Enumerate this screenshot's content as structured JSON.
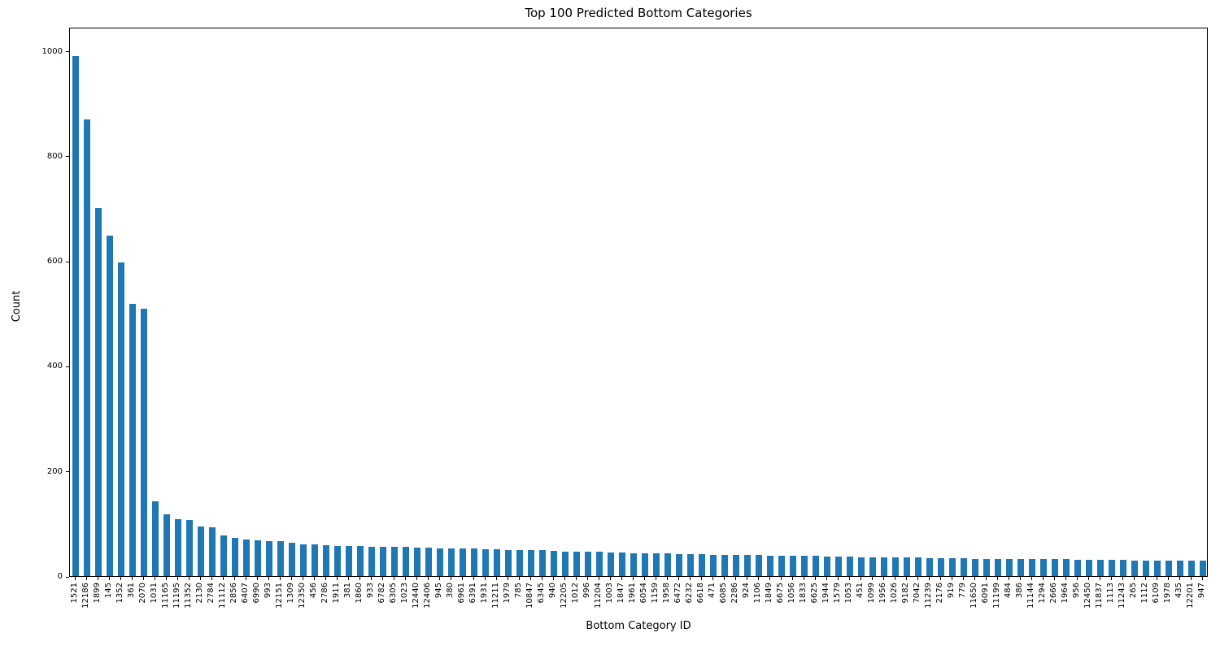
{
  "figure": {
    "background": "#ffffff",
    "text_color": "#000000",
    "spine_color": "#000000"
  },
  "chart_data": {
    "type": "bar",
    "title": "Top 100 Predicted Bottom Categories",
    "xlabel": "Bottom Category ID",
    "ylabel": "Count",
    "bar_color": "#1f77b4",
    "grid": false,
    "legend": "none",
    "x_tick_rotation": 90,
    "ylim": [
      0,
      1046
    ],
    "yticks": [
      0,
      200,
      400,
      600,
      800,
      1000
    ],
    "categories": [
      "1521",
      "12186",
      "1899",
      "145",
      "1352",
      "361",
      "2070",
      "1031",
      "11165",
      "11195",
      "11352",
      "2130",
      "2784",
      "11112",
      "2856",
      "6407",
      "6990",
      "993",
      "12151",
      "1309",
      "12350",
      "456",
      "2786",
      "1911",
      "381",
      "1860",
      "933",
      "6782",
      "6305",
      "1023",
      "12440",
      "12406",
      "945",
      "380",
      "6961",
      "6391",
      "1931",
      "11211",
      "1979",
      "785",
      "10847",
      "6345",
      "940",
      "12205",
      "1012",
      "996",
      "11204",
      "1003",
      "1847",
      "1961",
      "6054",
      "1159",
      "1958",
      "6472",
      "6232",
      "6618",
      "471",
      "6085",
      "2286",
      "924",
      "1106",
      "1849",
      "6675",
      "1056",
      "1833",
      "6625",
      "1944",
      "1579",
      "1053",
      "451",
      "1099",
      "1956",
      "1026",
      "9182",
      "7042",
      "11239",
      "2176",
      "919",
      "779",
      "11650",
      "6091",
      "11199",
      "484",
      "386",
      "11144",
      "1294",
      "2666",
      "1964",
      "956",
      "12450",
      "11837",
      "1113",
      "11243",
      "265",
      "1112",
      "6109",
      "1978",
      "435",
      "12201",
      "947"
    ],
    "values": [
      991,
      870,
      701,
      649,
      597,
      519,
      509,
      142,
      117,
      109,
      106,
      94,
      93,
      77,
      72,
      70,
      68,
      67,
      67,
      63,
      61,
      60,
      59,
      58,
      57,
      57,
      56,
      56,
      55,
      55,
      54,
      54,
      53,
      53,
      52,
      52,
      51,
      51,
      50,
      50,
      49,
      49,
      48,
      47,
      47,
      46,
      46,
      45,
      45,
      44,
      44,
      43,
      43,
      42,
      42,
      42,
      41,
      41,
      40,
      40,
      40,
      39,
      39,
      38,
      38,
      38,
      37,
      37,
      37,
      36,
      36,
      36,
      35,
      35,
      35,
      34,
      34,
      34,
      34,
      33,
      33,
      33,
      33,
      32,
      32,
      32,
      32,
      32,
      31,
      31,
      31,
      31,
      31,
      30,
      30,
      30,
      30,
      30,
      30,
      30
    ]
  }
}
